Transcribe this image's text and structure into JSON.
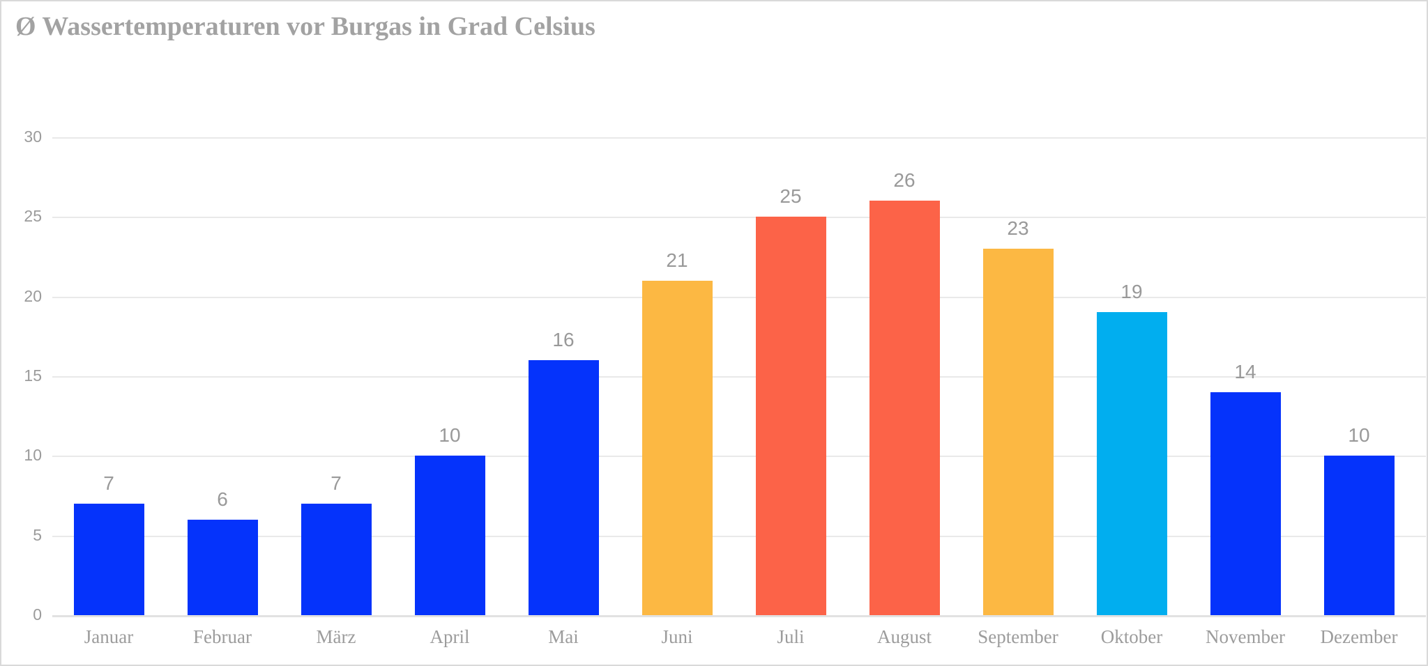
{
  "title": "Ø Wassertemperaturen vor Burgas in Grad Celsius",
  "chart_data": {
    "type": "bar",
    "title": "Ø Wassertemperaturen vor Burgas in Grad Celsius",
    "categories": [
      "Januar",
      "Februar",
      "März",
      "April",
      "Mai",
      "Juni",
      "Juli",
      "August",
      "September",
      "Oktober",
      "November",
      "Dezember"
    ],
    "values": [
      7,
      6,
      7,
      10,
      16,
      21,
      25,
      26,
      23,
      19,
      14,
      10
    ],
    "value_labels": [
      "7",
      "6",
      "7",
      "10",
      "16",
      "21",
      "25",
      "26",
      "23",
      "19",
      "14",
      "10"
    ],
    "bar_colors": [
      "#0533fb",
      "#0533fb",
      "#0533fb",
      "#0533fb",
      "#0533fb",
      "#fcb843",
      "#fc6348",
      "#fc6348",
      "#fcb843",
      "#01aeef",
      "#0533fb",
      "#0533fb"
    ],
    "y_ticks": [
      0,
      5,
      10,
      15,
      20,
      25,
      30
    ],
    "ylim": [
      0,
      30
    ],
    "xlabel": "",
    "ylabel": "",
    "grid": true,
    "legend": "none",
    "colors": {
      "blue_bar": "#0533fb",
      "orange_bar": "#fcb843",
      "red_bar": "#fc6348",
      "cyan_bar": "#01aeef",
      "grid_line": "#e9e9e9",
      "axis_text": "#9b9b9b",
      "title_text": "#a2a2a2",
      "canvas_border": "#d9d9d9",
      "background": "#ffffff"
    }
  }
}
